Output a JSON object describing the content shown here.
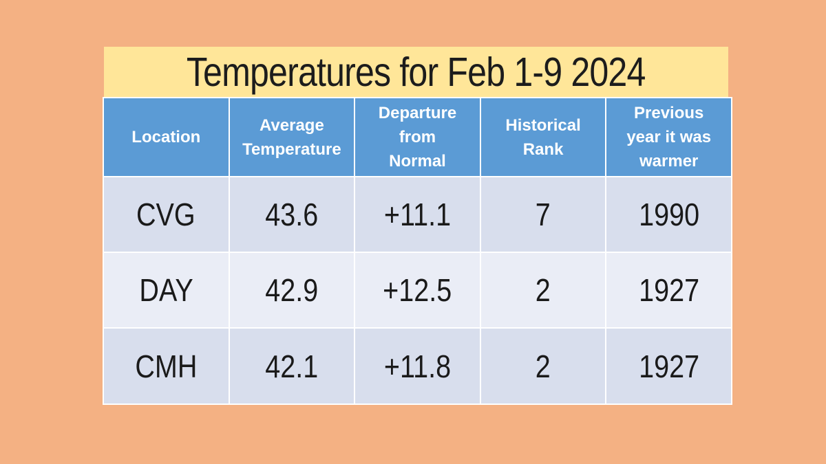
{
  "title": "Temperatures for Feb 1-9 2024",
  "ui": {
    "header_lines": [
      [
        "Location"
      ],
      [
        "Average",
        "Temperature"
      ],
      [
        "Departure",
        "from",
        "Normal"
      ],
      [
        "Historical",
        "Rank"
      ],
      [
        "Previous",
        "year it was",
        "warmer"
      ]
    ],
    "rows": [
      [
        "CVG",
        "43.6",
        "+11.1",
        "7",
        "1990"
      ],
      [
        "DAY",
        "42.9",
        "+12.5",
        "2",
        "1927"
      ],
      [
        "CMH",
        "42.1",
        "+11.8",
        "2",
        "1927"
      ]
    ]
  },
  "chart_data": {
    "type": "table",
    "title": "Temperatures for Feb 1-9 2024",
    "columns": [
      "Location",
      "Average Temperature",
      "Departure from Normal",
      "Historical Rank",
      "Previous year it was warmer"
    ],
    "rows": [
      [
        "CVG",
        43.6,
        "+11.1",
        7,
        1990
      ],
      [
        "DAY",
        42.9,
        "+12.5",
        2,
        1927
      ],
      [
        "CMH",
        42.1,
        "+11.8",
        2,
        1927
      ]
    ]
  },
  "colors": {
    "page_background": "#F4B183",
    "title_background": "#FFE699",
    "header_background": "#5B9BD5",
    "row_band_dark": "#D8DEED",
    "row_band_light": "#EAEDF6",
    "gridline": "#FFFFFF",
    "header_text": "#FFFFFF",
    "body_text": "#1A1A1A"
  }
}
